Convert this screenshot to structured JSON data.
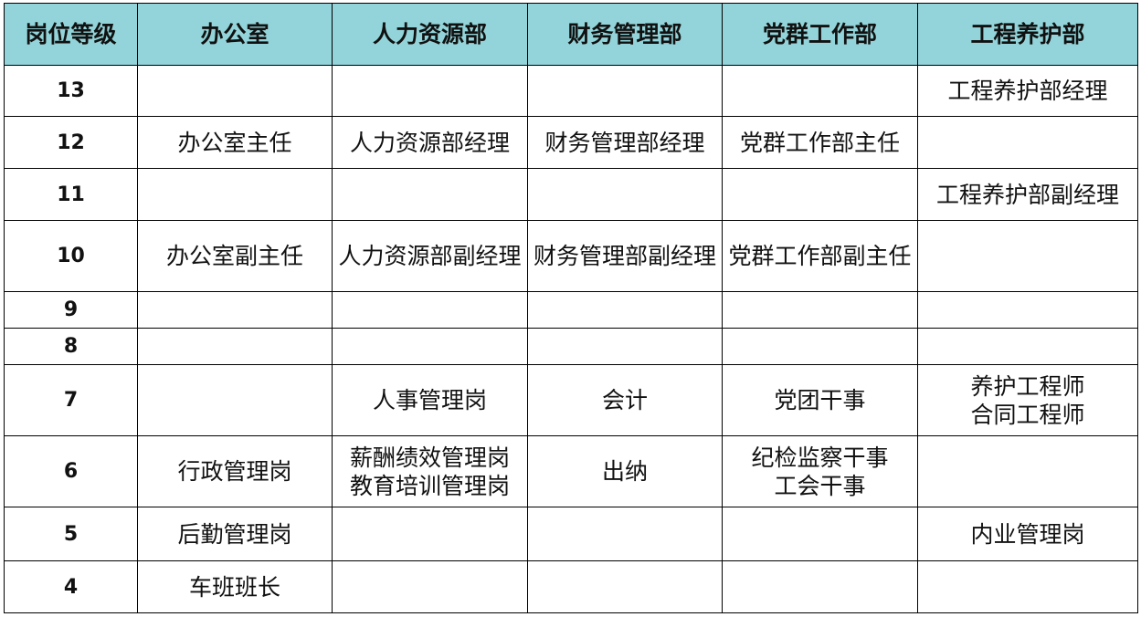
{
  "header": [
    "岗位等级",
    "办公室",
    "人力资源部",
    "财务管理部",
    "党群工作部",
    "工程养护部"
  ],
  "rows": [
    {
      "level": "13",
      "cells": [
        "",
        "",
        "",
        "",
        "工程养护部经理"
      ]
    },
    {
      "level": "12",
      "cells": [
        "办公室主任",
        "人力资源部经理",
        "财务管理部经理",
        "党群工作部主任",
        ""
      ]
    },
    {
      "level": "11",
      "cells": [
        "",
        "",
        "",
        "",
        "工程养护部副经理"
      ]
    },
    {
      "level": "10",
      "cells": [
        "办公室副主任",
        "人力资源部副经理",
        "财务管理部副经理",
        "党群工作部副主任",
        ""
      ]
    },
    {
      "level": "9",
      "cells": [
        "",
        "",
        "",
        "",
        ""
      ]
    },
    {
      "level": "8",
      "cells": [
        "",
        "",
        "",
        "",
        ""
      ]
    },
    {
      "level": "7",
      "cells": [
        "",
        "人事管理岗",
        "会计",
        "党团干事",
        "养护工程师\n合同工程师"
      ]
    },
    {
      "level": "6",
      "cells": [
        "行政管理岗",
        "薪酬绩效管理岗\n教育培训管理岗",
        "出纳",
        "纪检监察干事\n工会干事",
        ""
      ]
    },
    {
      "level": "5",
      "cells": [
        "后勤管理岗",
        "",
        "",
        "",
        "内业管理岗"
      ]
    },
    {
      "level": "4",
      "cells": [
        "车班班长",
        "",
        "",
        "",
        ""
      ]
    }
  ],
  "colors": {
    "header_bg": "#92d4d9",
    "border": "#000000"
  }
}
